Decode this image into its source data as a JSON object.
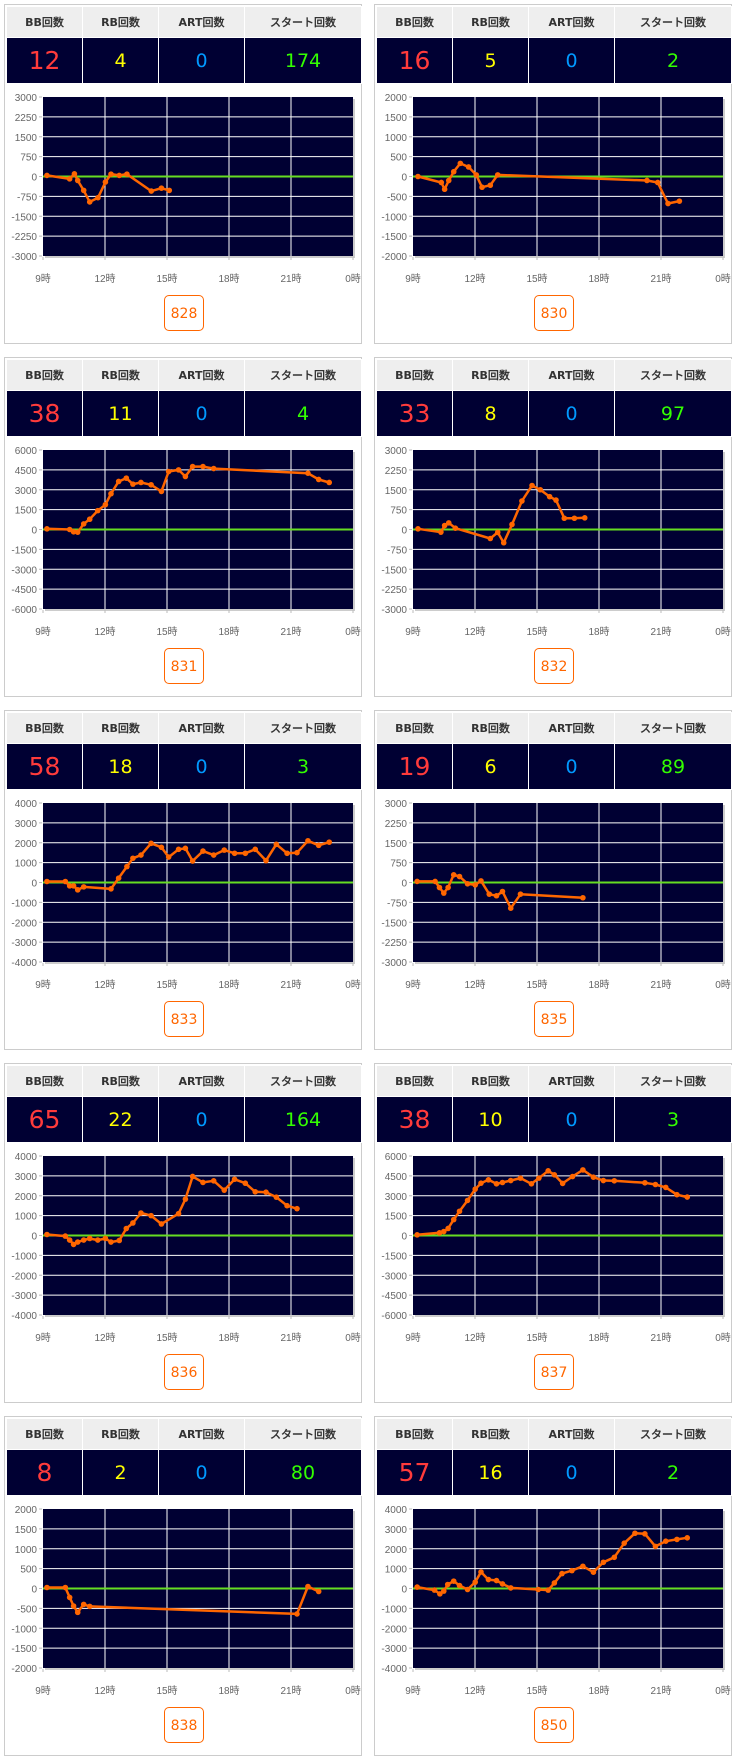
{
  "headers": {
    "bb": "BB回数",
    "rb": "RB回数",
    "art": "ART回数",
    "start": "スタート回数"
  },
  "colors": {
    "bb": "#ff3b3b",
    "rb": "#ffff00",
    "art": "#0099ff",
    "start": "#33ff00",
    "line": "#ff6600",
    "zero": "#66dd22",
    "plot_bg": "#000033"
  },
  "chart_data": [
    {
      "type": "line",
      "machine": "828",
      "bb": "12",
      "rb": "4",
      "art": "0",
      "start": "174",
      "xlim": [
        9,
        24
      ],
      "ylim": [
        -3000,
        3000
      ],
      "xticks": [
        "9時",
        "12時",
        "15時",
        "18時",
        "21時",
        "0時"
      ],
      "yticks": [
        "3000",
        "2250",
        "1500",
        "750",
        "0",
        "-750",
        "-1500",
        "-2250",
        "-3000"
      ],
      "points": [
        [
          9.19,
          40
        ],
        [
          10.29,
          -90
        ],
        [
          10.52,
          100
        ],
        [
          10.68,
          -150
        ],
        [
          10.97,
          -525
        ],
        [
          11.26,
          -960
        ],
        [
          11.66,
          -800
        ],
        [
          12.02,
          -210
        ],
        [
          12.29,
          90
        ],
        [
          12.69,
          40
        ],
        [
          13.06,
          90
        ],
        [
          14.24,
          -550
        ],
        [
          14.73,
          -440
        ],
        [
          15.11,
          -525
        ]
      ]
    },
    {
      "type": "line",
      "machine": "830",
      "bb": "16",
      "rb": "5",
      "art": "0",
      "start": "2",
      "xlim": [
        9,
        24
      ],
      "ylim": [
        -2000,
        2000
      ],
      "xticks": [
        "9時",
        "12時",
        "15時",
        "18時",
        "21時",
        "0時"
      ],
      "yticks": [
        "2000",
        "1500",
        "1000",
        "500",
        "0",
        "-500",
        "-1000",
        "-1500",
        "-2000"
      ],
      "points": [
        [
          9.24,
          0
        ],
        [
          10.37,
          -150
        ],
        [
          10.53,
          -320
        ],
        [
          10.73,
          -100
        ],
        [
          10.97,
          120
        ],
        [
          11.29,
          330
        ],
        [
          11.69,
          240
        ],
        [
          12.06,
          40
        ],
        [
          12.34,
          -270
        ],
        [
          12.74,
          -220
        ],
        [
          13.1,
          40
        ],
        [
          20.32,
          -100
        ],
        [
          20.84,
          -150
        ],
        [
          21.34,
          -680
        ],
        [
          21.89,
          -620
        ]
      ]
    },
    {
      "type": "line",
      "machine": "831",
      "bb": "38",
      "rb": "11",
      "art": "0",
      "start": "4",
      "xlim": [
        9,
        24
      ],
      "ylim": [
        -6000,
        6000
      ],
      "xticks": [
        "9時",
        "12時",
        "15時",
        "18時",
        "21時",
        "0時"
      ],
      "yticks": [
        "6000",
        "4500",
        "3000",
        "1500",
        "0",
        "-1500",
        "-3000",
        "-4500",
        "-6000"
      ],
      "points": [
        [
          9.19,
          50
        ],
        [
          10.29,
          0
        ],
        [
          10.48,
          -175
        ],
        [
          10.68,
          -200
        ],
        [
          10.97,
          425
        ],
        [
          11.26,
          775
        ],
        [
          11.65,
          1425
        ],
        [
          12.02,
          1875
        ],
        [
          12.29,
          2700
        ],
        [
          12.66,
          3625
        ],
        [
          13.03,
          3875
        ],
        [
          13.35,
          3425
        ],
        [
          13.74,
          3550
        ],
        [
          14.23,
          3375
        ],
        [
          14.73,
          2875
        ],
        [
          15.08,
          4375
        ],
        [
          15.56,
          4500
        ],
        [
          15.89,
          4000
        ],
        [
          16.24,
          4750
        ],
        [
          16.74,
          4750
        ],
        [
          17.26,
          4600
        ],
        [
          21.82,
          4250
        ],
        [
          22.34,
          3775
        ],
        [
          22.85,
          3550
        ]
      ]
    },
    {
      "type": "line",
      "machine": "832",
      "bb": "33",
      "rb": "8",
      "art": "0",
      "start": "97",
      "xlim": [
        9,
        24
      ],
      "ylim": [
        -3000,
        3000
      ],
      "xticks": [
        "9時",
        "12時",
        "15時",
        "18時",
        "21時",
        "0時"
      ],
      "yticks": [
        "3000",
        "2250",
        "1500",
        "750",
        "0",
        "-750",
        "-1500",
        "-2250",
        "-3000"
      ],
      "points": [
        [
          9.24,
          25
        ],
        [
          10.35,
          -100
        ],
        [
          10.53,
          150
        ],
        [
          10.73,
          250
        ],
        [
          11.05,
          50
        ],
        [
          12.74,
          -340
        ],
        [
          13.1,
          -110
        ],
        [
          13.39,
          -500
        ],
        [
          13.79,
          190
        ],
        [
          14.27,
          1075
        ],
        [
          14.76,
          1660
        ],
        [
          15.16,
          1500
        ],
        [
          15.61,
          1240
        ],
        [
          15.92,
          1110
        ],
        [
          16.32,
          425
        ],
        [
          16.81,
          425
        ],
        [
          17.31,
          440
        ]
      ]
    },
    {
      "type": "line",
      "machine": "833",
      "bb": "58",
      "rb": "18",
      "art": "0",
      "start": "3",
      "xlim": [
        9,
        24
      ],
      "ylim": [
        -4000,
        4000
      ],
      "xticks": [
        "9時",
        "12時",
        "15時",
        "18時",
        "21時",
        "0時"
      ],
      "yticks": [
        "4000",
        "3000",
        "2000",
        "1000",
        "0",
        "-1000",
        "-2000",
        "-3000",
        "-4000"
      ],
      "points": [
        [
          9.19,
          50
        ],
        [
          10.08,
          50
        ],
        [
          10.29,
          -170
        ],
        [
          10.48,
          -170
        ],
        [
          10.68,
          -370
        ],
        [
          10.97,
          -220
        ],
        [
          12.29,
          -320
        ],
        [
          12.66,
          220
        ],
        [
          13.06,
          800
        ],
        [
          13.35,
          1220
        ],
        [
          13.74,
          1380
        ],
        [
          14.23,
          1970
        ],
        [
          14.73,
          1770
        ],
        [
          15.08,
          1280
        ],
        [
          15.56,
          1670
        ],
        [
          15.89,
          1720
        ],
        [
          16.24,
          1080
        ],
        [
          16.74,
          1580
        ],
        [
          17.26,
          1380
        ],
        [
          17.77,
          1630
        ],
        [
          18.27,
          1470
        ],
        [
          18.79,
          1470
        ],
        [
          19.27,
          1670
        ],
        [
          19.79,
          1100
        ],
        [
          20.29,
          1920
        ],
        [
          20.81,
          1470
        ],
        [
          21.29,
          1500
        ],
        [
          21.82,
          2100
        ],
        [
          22.34,
          1870
        ],
        [
          22.85,
          2030
        ]
      ]
    },
    {
      "type": "line",
      "machine": "835",
      "bb": "19",
      "rb": "6",
      "art": "0",
      "start": "89",
      "xlim": [
        9,
        24
      ],
      "ylim": [
        -3000,
        3000
      ],
      "xticks": [
        "9時",
        "12時",
        "15時",
        "18時",
        "21時",
        "0時"
      ],
      "yticks": [
        "3000",
        "2250",
        "1500",
        "750",
        "0",
        "-750",
        "-1500",
        "-2250",
        "-3000"
      ],
      "points": [
        [
          9.2,
          40
        ],
        [
          10.07,
          40
        ],
        [
          10.28,
          -190
        ],
        [
          10.49,
          -400
        ],
        [
          10.7,
          -190
        ],
        [
          10.97,
          290
        ],
        [
          11.25,
          225
        ],
        [
          11.64,
          -50
        ],
        [
          12.01,
          -90
        ],
        [
          12.29,
          60
        ],
        [
          12.69,
          -440
        ],
        [
          13.04,
          -500
        ],
        [
          13.33,
          -340
        ],
        [
          13.73,
          -970
        ],
        [
          14.2,
          -440
        ],
        [
          17.22,
          -575
        ]
      ]
    },
    {
      "type": "line",
      "machine": "836",
      "bb": "65",
      "rb": "22",
      "art": "0",
      "start": "164",
      "xlim": [
        9,
        24
      ],
      "ylim": [
        -4000,
        4000
      ],
      "xticks": [
        "9時",
        "12時",
        "15時",
        "18時",
        "21時",
        "0時"
      ],
      "yticks": [
        "4000",
        "3000",
        "2000",
        "1000",
        "0",
        "-1000",
        "-2000",
        "-3000",
        "-4000"
      ],
      "points": [
        [
          9.19,
          50
        ],
        [
          10.08,
          -30
        ],
        [
          10.29,
          -230
        ],
        [
          10.48,
          -450
        ],
        [
          10.68,
          -330
        ],
        [
          10.97,
          -230
        ],
        [
          11.26,
          -150
        ],
        [
          11.65,
          -230
        ],
        [
          12.02,
          -150
        ],
        [
          12.29,
          -330
        ],
        [
          12.69,
          -250
        ],
        [
          13.03,
          350
        ],
        [
          13.35,
          630
        ],
        [
          13.74,
          1130
        ],
        [
          14.23,
          1000
        ],
        [
          14.73,
          580
        ],
        [
          15.56,
          1100
        ],
        [
          15.89,
          1830
        ],
        [
          16.24,
          2970
        ],
        [
          16.74,
          2670
        ],
        [
          17.26,
          2750
        ],
        [
          17.77,
          2280
        ],
        [
          18.27,
          2830
        ],
        [
          18.79,
          2630
        ],
        [
          19.27,
          2200
        ],
        [
          19.79,
          2180
        ],
        [
          20.29,
          1930
        ],
        [
          20.81,
          1500
        ],
        [
          21.29,
          1350
        ]
      ]
    },
    {
      "type": "line",
      "machine": "837",
      "bb": "38",
      "rb": "10",
      "art": "0",
      "start": "3",
      "xlim": [
        9,
        24
      ],
      "ylim": [
        -6000,
        6000
      ],
      "xticks": [
        "9時",
        "12時",
        "15時",
        "18時",
        "21時",
        "0時"
      ],
      "yticks": [
        "6000",
        "4500",
        "3000",
        "1500",
        "0",
        "-1500",
        "-3000",
        "-4500",
        "-6000"
      ],
      "points": [
        [
          9.2,
          50
        ],
        [
          10.28,
          200
        ],
        [
          10.49,
          300
        ],
        [
          10.7,
          530
        ],
        [
          10.97,
          1200
        ],
        [
          11.25,
          1830
        ],
        [
          11.64,
          2650
        ],
        [
          12.01,
          3500
        ],
        [
          12.29,
          3950
        ],
        [
          12.65,
          4200
        ],
        [
          13.04,
          3900
        ],
        [
          13.33,
          4000
        ],
        [
          13.73,
          4150
        ],
        [
          14.2,
          4330
        ],
        [
          14.73,
          3900
        ],
        [
          15.09,
          4330
        ],
        [
          15.54,
          4880
        ],
        [
          15.84,
          4580
        ],
        [
          16.24,
          3930
        ],
        [
          16.72,
          4450
        ],
        [
          17.22,
          4950
        ],
        [
          17.73,
          4400
        ],
        [
          18.21,
          4150
        ],
        [
          18.74,
          4130
        ],
        [
          20.22,
          3980
        ],
        [
          20.73,
          3850
        ],
        [
          21.23,
          3630
        ],
        [
          21.77,
          3080
        ],
        [
          22.27,
          2900
        ]
      ]
    },
    {
      "type": "line",
      "machine": "838",
      "bb": "8",
      "rb": "2",
      "art": "0",
      "start": "80",
      "xlim": [
        9,
        24
      ],
      "ylim": [
        -2000,
        2000
      ],
      "xticks": [
        "9時",
        "12時",
        "15時",
        "18時",
        "21時",
        "0時"
      ],
      "yticks": [
        "2000",
        "1500",
        "1000",
        "500",
        "0",
        "-500",
        "-1000",
        "-1500",
        "-2000"
      ],
      "points": [
        [
          9.19,
          25
        ],
        [
          10.08,
          25
        ],
        [
          10.29,
          -225
        ],
        [
          10.48,
          -440
        ],
        [
          10.68,
          -600
        ],
        [
          10.97,
          -400
        ],
        [
          11.26,
          -450
        ],
        [
          21.29,
          -640
        ],
        [
          21.82,
          50
        ],
        [
          22.34,
          -75
        ]
      ]
    },
    {
      "type": "line",
      "machine": "850",
      "bb": "57",
      "rb": "16",
      "art": "0",
      "start": "2",
      "xlim": [
        9,
        24
      ],
      "ylim": [
        -4000,
        4000
      ],
      "xticks": [
        "9時",
        "12時",
        "15時",
        "18時",
        "21時",
        "0時"
      ],
      "yticks": [
        "4000",
        "3000",
        "2000",
        "1000",
        "0",
        "-1000",
        "-2000",
        "-3000",
        "-4000"
      ],
      "points": [
        [
          9.2,
          70
        ],
        [
          10.04,
          -80
        ],
        [
          10.3,
          -270
        ],
        [
          10.49,
          -130
        ],
        [
          10.68,
          200
        ],
        [
          10.97,
          370
        ],
        [
          11.25,
          150
        ],
        [
          11.64,
          -50
        ],
        [
          12.01,
          320
        ],
        [
          12.29,
          830
        ],
        [
          12.65,
          450
        ],
        [
          13.04,
          400
        ],
        [
          13.33,
          230
        ],
        [
          13.73,
          30
        ],
        [
          15.06,
          -50
        ],
        [
          15.54,
          -80
        ],
        [
          15.84,
          280
        ],
        [
          16.21,
          750
        ],
        [
          16.69,
          900
        ],
        [
          17.22,
          1120
        ],
        [
          17.73,
          820
        ],
        [
          18.21,
          1320
        ],
        [
          18.74,
          1570
        ],
        [
          19.22,
          2280
        ],
        [
          19.74,
          2780
        ],
        [
          20.22,
          2750
        ],
        [
          20.73,
          2120
        ],
        [
          21.23,
          2380
        ],
        [
          21.77,
          2470
        ],
        [
          22.27,
          2550
        ]
      ]
    }
  ]
}
